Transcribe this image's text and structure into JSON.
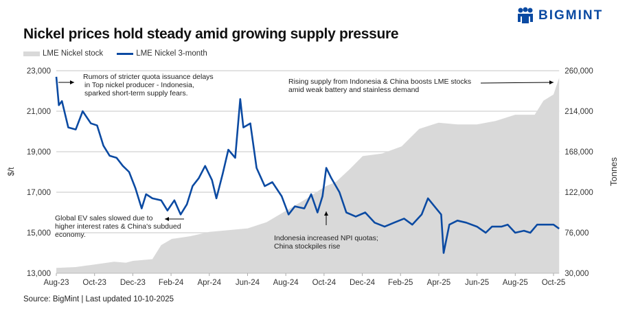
{
  "title": "Nickel prices hold steady amid growing supply pressure",
  "logo": {
    "text": "BIGMINT",
    "color": "#0b4aa2"
  },
  "source": "Source: BigMint | Last updated 10-10-2025",
  "chart_data": {
    "type": "line+area",
    "title": "Nickel prices hold steady amid growing supply pressure",
    "ylabel_left": "$/t",
    "ylabel_right": "Tonnes",
    "ylim_left": [
      13000,
      23000
    ],
    "ylim_right": [
      30000,
      260000
    ],
    "yticks_left": [
      "13,000",
      "15,000",
      "17,000",
      "19,000",
      "21,000",
      "23,000"
    ],
    "yticks_right": [
      "30,000",
      "76,000",
      "122,000",
      "168,000",
      "214,000",
      "260,000"
    ],
    "xticks": [
      "Aug-23",
      "Oct-23",
      "Dec-23",
      "Feb-24",
      "Apr-24",
      "Jun-24",
      "Aug-24",
      "Oct-24",
      "Dec-24",
      "Feb-25",
      "Apr-25",
      "Jun-25",
      "Aug-25",
      "Oct-25"
    ],
    "grid": true,
    "legend_position": "top-left",
    "series": [
      {
        "name": "LME Nickel stock",
        "type": "area",
        "axis": "right",
        "color": "#d9d9d9",
        "points": [
          [
            "2023-08-01",
            36000
          ],
          [
            "2023-09-01",
            37000
          ],
          [
            "2023-10-01",
            40000
          ],
          [
            "2023-11-01",
            43000
          ],
          [
            "2023-11-20",
            42000
          ],
          [
            "2023-12-01",
            44000
          ],
          [
            "2024-01-01",
            46000
          ],
          [
            "2024-01-15",
            62000
          ],
          [
            "2024-02-01",
            69000
          ],
          [
            "2024-03-01",
            72000
          ],
          [
            "2024-04-01",
            77000
          ],
          [
            "2024-05-01",
            79000
          ],
          [
            "2024-06-01",
            81000
          ],
          [
            "2024-07-01",
            88000
          ],
          [
            "2024-08-01",
            101000
          ],
          [
            "2024-09-01",
            114000
          ],
          [
            "2024-10-01",
            128000
          ],
          [
            "2024-10-20",
            134000
          ],
          [
            "2024-11-10",
            148000
          ],
          [
            "2024-12-01",
            163000
          ],
          [
            "2025-01-01",
            166000
          ],
          [
            "2025-02-01",
            174000
          ],
          [
            "2025-03-01",
            194000
          ],
          [
            "2025-04-01",
            201000
          ],
          [
            "2025-05-01",
            199000
          ],
          [
            "2025-06-01",
            199000
          ],
          [
            "2025-07-01",
            203000
          ],
          [
            "2025-08-01",
            210000
          ],
          [
            "2025-09-01",
            210000
          ],
          [
            "2025-09-15",
            226000
          ],
          [
            "2025-10-01",
            233000
          ],
          [
            "2025-10-10",
            252000
          ]
        ]
      },
      {
        "name": "LME Nickel 3-month",
        "type": "line",
        "axis": "left",
        "color": "#0b4aa2",
        "points": [
          [
            "2023-08-01",
            22700
          ],
          [
            "2023-08-05",
            21300
          ],
          [
            "2023-08-10",
            21500
          ],
          [
            "2023-08-20",
            20200
          ],
          [
            "2023-09-01",
            20100
          ],
          [
            "2023-09-12",
            21000
          ],
          [
            "2023-09-25",
            20400
          ],
          [
            "2023-10-05",
            20300
          ],
          [
            "2023-10-15",
            19300
          ],
          [
            "2023-10-25",
            18800
          ],
          [
            "2023-11-05",
            18700
          ],
          [
            "2023-11-15",
            18300
          ],
          [
            "2023-11-25",
            18000
          ],
          [
            "2023-12-05",
            17200
          ],
          [
            "2023-12-15",
            16200
          ],
          [
            "2023-12-22",
            16900
          ],
          [
            "2024-01-01",
            16700
          ],
          [
            "2024-01-15",
            16600
          ],
          [
            "2024-01-25",
            16100
          ],
          [
            "2024-02-05",
            16600
          ],
          [
            "2024-02-15",
            15900
          ],
          [
            "2024-02-25",
            16400
          ],
          [
            "2024-03-05",
            17300
          ],
          [
            "2024-03-15",
            17700
          ],
          [
            "2024-03-25",
            18300
          ],
          [
            "2024-04-05",
            17600
          ],
          [
            "2024-04-12",
            16700
          ],
          [
            "2024-04-22",
            17900
          ],
          [
            "2024-05-01",
            19100
          ],
          [
            "2024-05-12",
            18700
          ],
          [
            "2024-05-20",
            21600
          ],
          [
            "2024-05-25",
            20200
          ],
          [
            "2024-06-05",
            20400
          ],
          [
            "2024-06-15",
            18200
          ],
          [
            "2024-06-28",
            17300
          ],
          [
            "2024-07-10",
            17500
          ],
          [
            "2024-07-25",
            16800
          ],
          [
            "2024-08-05",
            15900
          ],
          [
            "2024-08-15",
            16300
          ],
          [
            "2024-08-30",
            16200
          ],
          [
            "2024-09-10",
            16900
          ],
          [
            "2024-09-20",
            16000
          ],
          [
            "2024-09-28",
            16800
          ],
          [
            "2024-10-04",
            18200
          ],
          [
            "2024-10-12",
            17700
          ],
          [
            "2024-10-25",
            17000
          ],
          [
            "2024-11-05",
            16000
          ],
          [
            "2024-11-20",
            15800
          ],
          [
            "2024-12-05",
            16000
          ],
          [
            "2024-12-20",
            15500
          ],
          [
            "2025-01-05",
            15300
          ],
          [
            "2025-01-20",
            15500
          ],
          [
            "2025-02-05",
            15700
          ],
          [
            "2025-02-18",
            15400
          ],
          [
            "2025-03-05",
            15900
          ],
          [
            "2025-03-15",
            16700
          ],
          [
            "2025-03-28",
            16200
          ],
          [
            "2025-04-05",
            15900
          ],
          [
            "2025-04-09",
            14000
          ],
          [
            "2025-04-18",
            15400
          ],
          [
            "2025-05-01",
            15600
          ],
          [
            "2025-05-15",
            15500
          ],
          [
            "2025-06-01",
            15300
          ],
          [
            "2025-06-15",
            15000
          ],
          [
            "2025-06-25",
            15300
          ],
          [
            "2025-07-10",
            15300
          ],
          [
            "2025-07-20",
            15400
          ],
          [
            "2025-08-01",
            15000
          ],
          [
            "2025-08-15",
            15100
          ],
          [
            "2025-08-25",
            15000
          ],
          [
            "2025-09-05",
            15400
          ],
          [
            "2025-09-20",
            15400
          ],
          [
            "2025-10-01",
            15400
          ],
          [
            "2025-10-10",
            15200
          ]
        ]
      }
    ],
    "annotations": [
      {
        "text": [
          "Rumors of stricter quota issuance delays",
          "in Top nickel producer - Indonesia,",
          "sparked short-term supply fears."
        ]
      },
      {
        "text": [
          "Rising supply from Indonesia & China boosts LME stocks",
          "amid weak battery and stainless demand"
        ]
      },
      {
        "text": [
          "Global EV sales slowed due to",
          "higher interest rates & China's subdued",
          "economy."
        ]
      },
      {
        "text": [
          "Indonesia increased NPI quotas;",
          "China stockpiles rise"
        ]
      }
    ]
  }
}
